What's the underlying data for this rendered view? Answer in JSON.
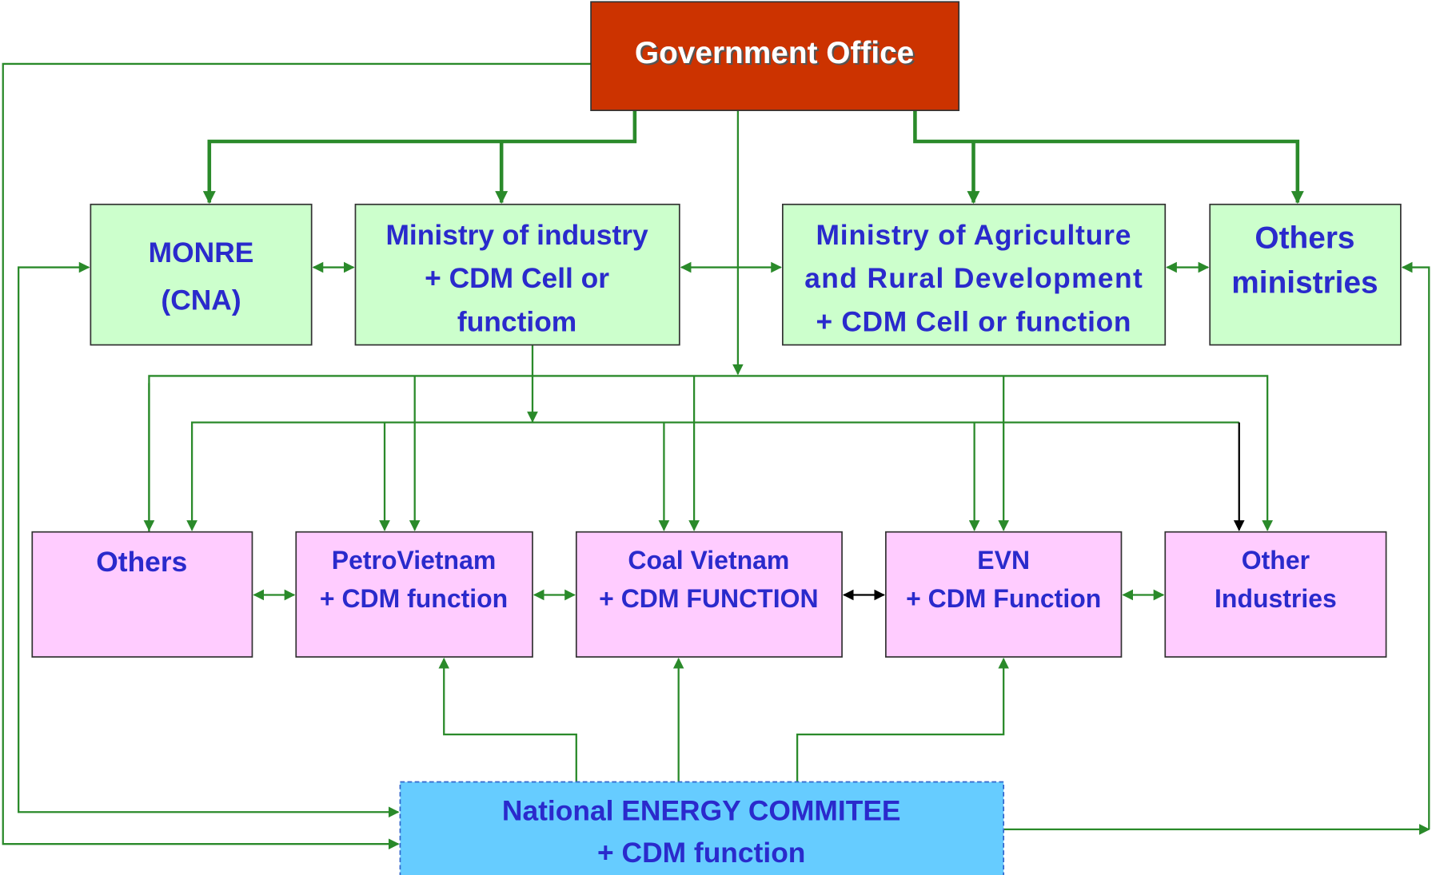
{
  "nodes": [
    {
      "lines": [
        "Government Office"
      ]
    },
    {
      "lines": [
        "MONRE",
        "(CNA)"
      ]
    },
    {
      "lines": [
        "Ministry of industry",
        "+ CDM Cell or",
        "functiom"
      ]
    },
    {
      "lines": [
        "Ministry of Agriculture",
        "and Rural  Development",
        "+ CDM Cell or function"
      ]
    },
    {
      "lines": [
        "Others",
        "ministries"
      ]
    },
    {
      "lines": [
        "Others"
      ]
    },
    {
      "lines": [
        "PetroVietnam",
        "+ CDM function"
      ]
    },
    {
      "lines": [
        "Coal Vietnam",
        "+ CDM FUNCTION"
      ]
    },
    {
      "lines": [
        "EVN",
        "+ CDM Function"
      ]
    },
    {
      "lines": [
        "Other",
        "Industries"
      ]
    },
    {
      "lines": [
        "National ENERGY COMMITEE",
        "+ CDM function"
      ]
    }
  ]
}
